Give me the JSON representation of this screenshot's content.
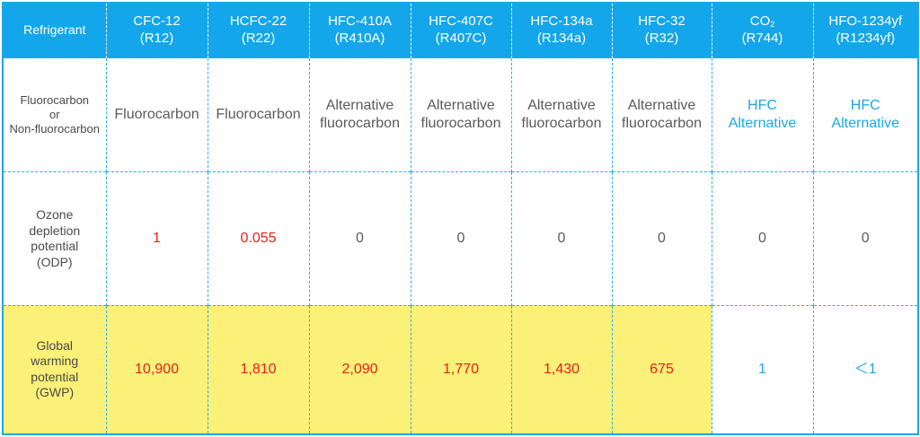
{
  "header": {
    "label": "Refrigerant",
    "columns": [
      {
        "name": "CFC-12",
        "code": "(R12)"
      },
      {
        "name": "HCFC-22",
        "code": "(R22)"
      },
      {
        "name": "HFC-410A",
        "code": "(R410A)"
      },
      {
        "name": "HFC-407C",
        "code": "(R407C)"
      },
      {
        "name": "HFC-134a",
        "code": "(R134a)"
      },
      {
        "name": "HFC-32",
        "code": "(R32)"
      },
      {
        "name": "CO",
        "sub": "2",
        "code": "(R744)"
      },
      {
        "name": "HFO-1234yf",
        "code": "(R1234yf)"
      }
    ]
  },
  "rows": {
    "type": {
      "label": [
        "Fluorocarbon",
        "or",
        "Non-fluorocarbon"
      ],
      "cells": [
        [
          "Fluorocarbon"
        ],
        [
          "Fluorocarbon"
        ],
        [
          "Alternative",
          "fluorocarbon"
        ],
        [
          "Alternative",
          "fluorocarbon"
        ],
        [
          "Alternative",
          "fluorocarbon"
        ],
        [
          "Alternative",
          "fluorocarbon"
        ],
        [
          "HFC",
          "Alternative"
        ],
        [
          "HFC",
          "Alternative"
        ]
      ]
    },
    "odp": {
      "label": [
        "Ozone",
        "depletion",
        "potential",
        "(ODP)"
      ],
      "cells": [
        "1",
        "0.055",
        "0",
        "0",
        "0",
        "0",
        "0",
        "0"
      ]
    },
    "gwp": {
      "label": [
        "Global",
        "warming",
        "potential",
        "(GWP)"
      ],
      "cells": [
        "10,900",
        "1,810",
        "2,090",
        "1,770",
        "1,430",
        "675",
        "1",
        "＜1"
      ]
    }
  },
  "colors": {
    "header_bg": "#14a6ea",
    "highlight_red": "#e8201e",
    "highlight_blue": "#1aa7e6",
    "gwp_fill": "#fbf078"
  }
}
